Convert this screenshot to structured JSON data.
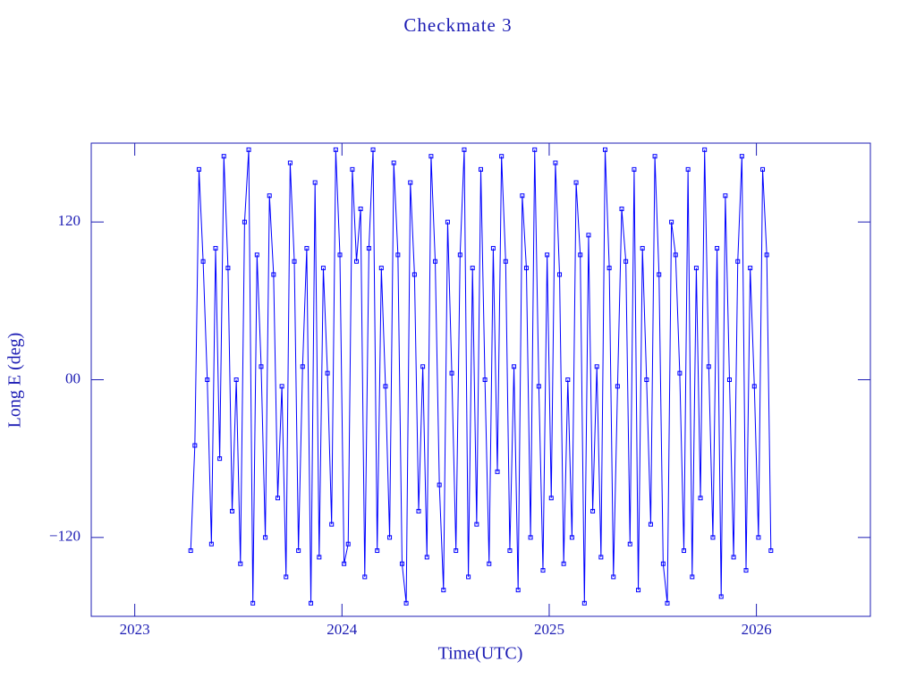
{
  "chart_data": {
    "type": "line",
    "title": "Checkmate 3",
    "x_label": "Time(UTC)",
    "y_label": "Long E (deg)",
    "xlim": [
      2022.79,
      2026.55
    ],
    "xticks": [
      2023,
      2024,
      2025,
      2026
    ],
    "ylim": [
      -180,
      180
    ],
    "yticks": [
      {
        "value": -120,
        "label": "−120"
      },
      {
        "value": 0,
        "label": "00"
      },
      120
    ],
    "grid": false,
    "series": [
      {
        "color": "#0000ff",
        "x": [
          2023.27,
          2023.29,
          2023.31,
          2023.33,
          2023.35,
          2023.37,
          2023.39,
          2023.41,
          2023.43,
          2023.45,
          2023.47,
          2023.49,
          2023.51,
          2023.53,
          2023.55,
          2023.57,
          2023.59,
          2023.61,
          2023.63,
          2023.65,
          2023.67,
          2023.69,
          2023.71,
          2023.73,
          2023.75,
          2023.77,
          2023.79,
          2023.81,
          2023.83,
          2023.85,
          2023.87,
          2023.89,
          2023.91,
          2023.93,
          2023.95,
          2023.97,
          2023.99,
          2024.01,
          2024.03,
          2024.05,
          2024.07,
          2024.09,
          2024.11,
          2024.13,
          2024.15,
          2024.17,
          2024.19,
          2024.21,
          2024.23,
          2024.25,
          2024.27,
          2024.29,
          2024.31,
          2024.33,
          2024.35,
          2024.37,
          2024.39,
          2024.41,
          2024.43,
          2024.45,
          2024.47,
          2024.49,
          2024.51,
          2024.53,
          2024.55,
          2024.57,
          2024.59,
          2024.61,
          2024.63,
          2024.65,
          2024.67,
          2024.69,
          2024.71,
          2024.73,
          2024.75,
          2024.77,
          2024.79,
          2024.81,
          2024.83,
          2024.85,
          2024.87,
          2024.89,
          2024.91,
          2024.93,
          2024.95,
          2024.97,
          2024.99,
          2025.01,
          2025.03,
          2025.05,
          2025.07,
          2025.09,
          2025.11,
          2025.13,
          2025.15,
          2025.17,
          2025.19,
          2025.21,
          2025.23,
          2025.25,
          2025.27,
          2025.29,
          2025.31,
          2025.33,
          2025.35,
          2025.37,
          2025.39,
          2025.41,
          2025.43,
          2025.45,
          2025.47,
          2025.49,
          2025.51,
          2025.53,
          2025.55,
          2025.57,
          2025.59,
          2025.61,
          2025.63,
          2025.65,
          2025.67,
          2025.69,
          2025.71,
          2025.73,
          2025.75,
          2025.77,
          2025.79,
          2025.81,
          2025.83,
          2025.85,
          2025.87,
          2025.89,
          2025.91,
          2025.93,
          2025.95,
          2025.97,
          2025.99,
          2026.01,
          2026.03,
          2026.05,
          2026.07
        ],
        "values": [
          -130,
          -50,
          160,
          90,
          0,
          -125,
          100,
          -60,
          170,
          85,
          -100,
          0,
          -140,
          120,
          175,
          -170,
          95,
          10,
          -120,
          140,
          80,
          -90,
          -5,
          -150,
          165,
          90,
          -130,
          10,
          100,
          -170,
          150,
          -135,
          85,
          5,
          -110,
          175,
          95,
          -140,
          -125,
          160,
          90,
          130,
          -150,
          100,
          175,
          -130,
          85,
          -5,
          -120,
          165,
          95,
          -140,
          -170,
          150,
          80,
          -100,
          10,
          -135,
          170,
          90,
          -80,
          -160,
          120,
          5,
          -130,
          95,
          175,
          -150,
          85,
          -110,
          160,
          0,
          -140,
          100,
          -70,
          170,
          90,
          -130,
          10,
          -160,
          140,
          85,
          -120,
          175,
          -5,
          -145,
          95,
          -90,
          165,
          80,
          -140,
          0,
          -120,
          150,
          95,
          -170,
          110,
          -100,
          10,
          -135,
          175,
          85,
          -150,
          -5,
          130,
          90,
          -125,
          160,
          -160,
          100,
          0,
          -110,
          170,
          80,
          -140,
          -170,
          120,
          95,
          5,
          -130,
          160,
          -150,
          85,
          -90,
          175,
          10,
          -120,
          100,
          -165,
          140,
          0,
          -135,
          90,
          170,
          -145,
          85,
          -5,
          -120,
          160,
          95,
          -130
        ]
      }
    ]
  }
}
